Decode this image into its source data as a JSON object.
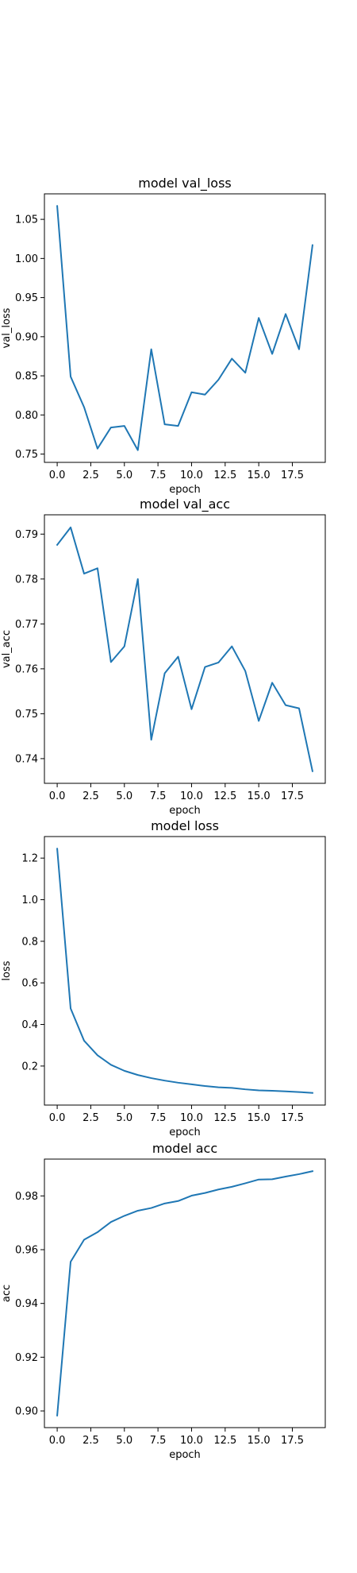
{
  "chart_data": [
    {
      "type": "line",
      "title": "model val_loss",
      "xlabel": "epoch",
      "ylabel": "val_loss",
      "x": [
        0,
        1,
        2,
        3,
        4,
        5,
        6,
        7,
        8,
        9,
        10,
        11,
        12,
        13,
        14,
        15,
        16,
        17,
        18,
        19
      ],
      "series": [
        {
          "values": [
            1.067,
            0.849,
            0.81,
            0.757,
            0.784,
            0.786,
            0.755,
            0.884,
            0.788,
            0.786,
            0.829,
            0.826,
            0.845,
            0.872,
            0.854,
            0.924,
            0.878,
            0.929,
            0.884,
            1.017
          ],
          "color": "#1f77b4"
        }
      ],
      "xticks": [
        0,
        2.5,
        5,
        7.5,
        10,
        12.5,
        15,
        17.5
      ],
      "xtick_labels": [
        "0.0",
        "2.5",
        "5.0",
        "7.5",
        "10.0",
        "12.5",
        "15.0",
        "17.5"
      ],
      "yticks": [
        0.75,
        0.8,
        0.85,
        0.9,
        0.95,
        1.0,
        1.05
      ],
      "ytick_labels": [
        "0.75",
        "0.80",
        "0.85",
        "0.90",
        "0.95",
        "1.00",
        "1.05"
      ],
      "xlim": [
        -0.95,
        19.95
      ],
      "ylim": [
        0.7394,
        1.0826
      ],
      "grid": false
    },
    {
      "type": "line",
      "title": "model val_acc",
      "xlabel": "epoch",
      "ylabel": "val_acc",
      "x": [
        0,
        1,
        2,
        3,
        4,
        5,
        6,
        7,
        8,
        9,
        10,
        11,
        12,
        13,
        14,
        15,
        16,
        17,
        18,
        19
      ],
      "series": [
        {
          "values": [
            0.7876,
            0.7915,
            0.7812,
            0.7824,
            0.7615,
            0.765,
            0.78,
            0.7442,
            0.759,
            0.7627,
            0.751,
            0.7604,
            0.7614,
            0.765,
            0.7595,
            0.7484,
            0.7569,
            0.7519,
            0.7512,
            0.7372
          ],
          "color": "#1f77b4"
        }
      ],
      "xticks": [
        0,
        2.5,
        5,
        7.5,
        10,
        12.5,
        15,
        17.5
      ],
      "xtick_labels": [
        "0.0",
        "2.5",
        "5.0",
        "7.5",
        "10.0",
        "12.5",
        "15.0",
        "17.5"
      ],
      "yticks": [
        0.74,
        0.75,
        0.76,
        0.77,
        0.78,
        0.79
      ],
      "ytick_labels": [
        "0.74",
        "0.75",
        "0.76",
        "0.77",
        "0.78",
        "0.79"
      ],
      "xlim": [
        -0.95,
        19.95
      ],
      "ylim": [
        0.7345,
        0.7943
      ],
      "grid": false
    },
    {
      "type": "line",
      "title": "model loss",
      "xlabel": "epoch",
      "ylabel": "loss",
      "x": [
        0,
        1,
        2,
        3,
        4,
        5,
        6,
        7,
        8,
        9,
        10,
        11,
        12,
        13,
        14,
        15,
        16,
        17,
        18,
        19
      ],
      "series": [
        {
          "values": [
            1.245,
            0.477,
            0.322,
            0.252,
            0.206,
            0.177,
            0.157,
            0.142,
            0.13,
            0.12,
            0.112,
            0.104,
            0.098,
            0.095,
            0.088,
            0.083,
            0.081,
            0.078,
            0.075,
            0.071
          ],
          "color": "#1f77b4"
        }
      ],
      "xticks": [
        0,
        2.5,
        5,
        7.5,
        10,
        12.5,
        15,
        17.5
      ],
      "xtick_labels": [
        "0.0",
        "2.5",
        "5.0",
        "7.5",
        "10.0",
        "12.5",
        "15.0",
        "17.5"
      ],
      "yticks": [
        0.2,
        0.4,
        0.6,
        0.8,
        1.0,
        1.2
      ],
      "ytick_labels": [
        "0.2",
        "0.4",
        "0.6",
        "0.8",
        "1.0",
        "1.2"
      ],
      "xlim": [
        -0.95,
        19.95
      ],
      "ylim": [
        0.0123,
        1.3037
      ],
      "grid": false
    },
    {
      "type": "line",
      "title": "model acc",
      "xlabel": "epoch",
      "ylabel": "acc",
      "x": [
        0,
        1,
        2,
        3,
        4,
        5,
        6,
        7,
        8,
        9,
        10,
        11,
        12,
        13,
        14,
        15,
        16,
        17,
        18,
        19
      ],
      "series": [
        {
          "values": [
            0.8983,
            0.9555,
            0.9637,
            0.9665,
            0.9703,
            0.9726,
            0.9745,
            0.9755,
            0.9772,
            0.9781,
            0.9801,
            0.9811,
            0.9824,
            0.9834,
            0.9847,
            0.9861,
            0.9862,
            0.9872,
            0.9881,
            0.9892
          ],
          "color": "#1f77b4"
        }
      ],
      "xticks": [
        0,
        2.5,
        5,
        7.5,
        10,
        12.5,
        15,
        17.5
      ],
      "xtick_labels": [
        "0.0",
        "2.5",
        "5.0",
        "7.5",
        "10.0",
        "12.5",
        "15.0",
        "17.5"
      ],
      "yticks": [
        0.9,
        0.92,
        0.94,
        0.96,
        0.98
      ],
      "ytick_labels": [
        "0.90",
        "0.92",
        "0.94",
        "0.96",
        "0.98"
      ],
      "xlim": [
        -0.95,
        19.95
      ],
      "ylim": [
        0.8938,
        0.9937
      ],
      "grid": false
    }
  ]
}
